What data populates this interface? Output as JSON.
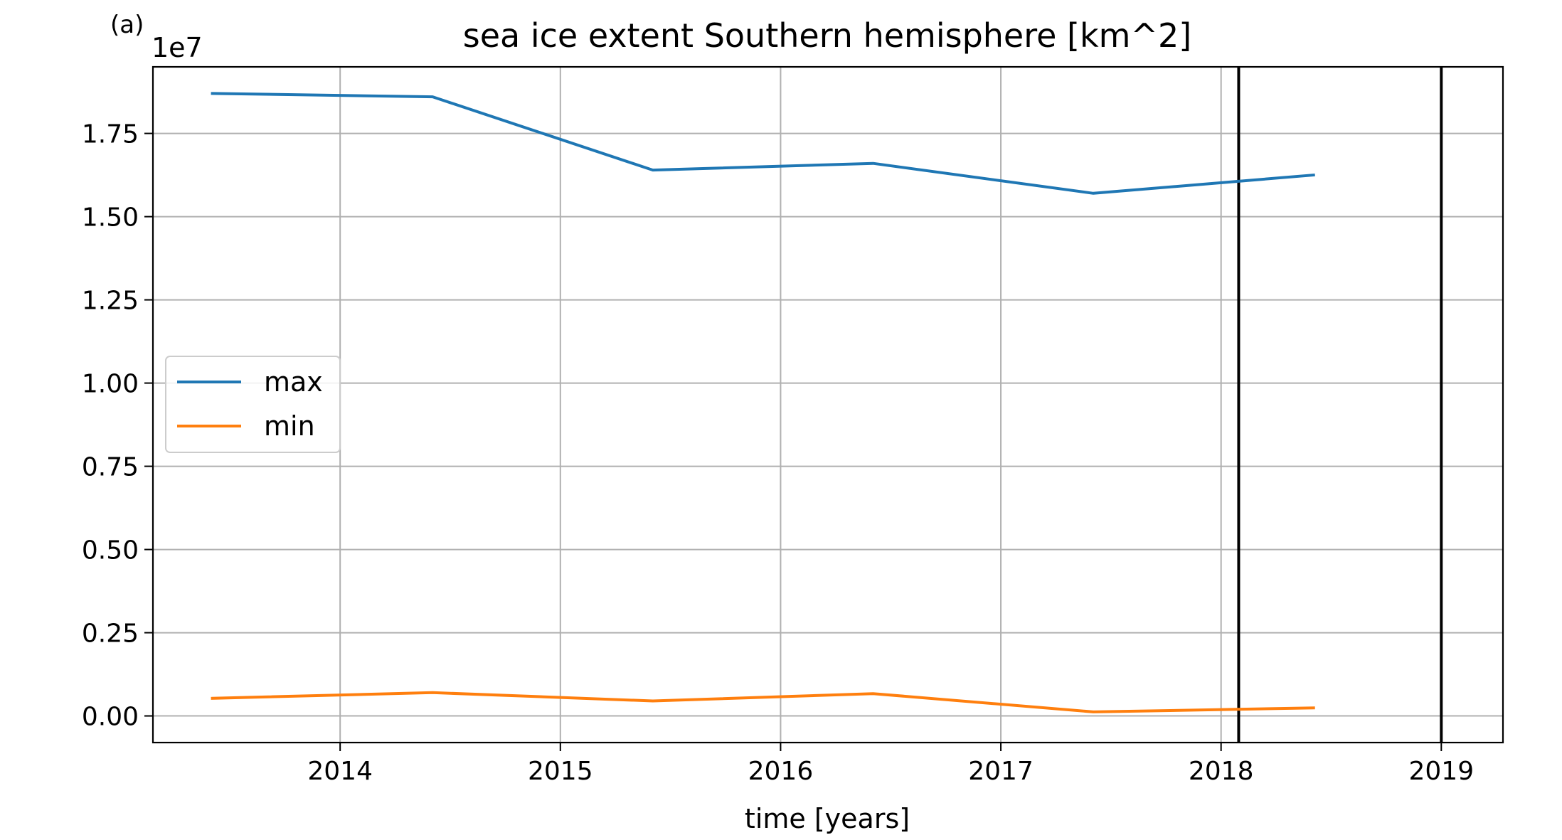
{
  "chart_data": {
    "type": "line",
    "panel_label": "(a)",
    "title": "sea ice extent Southern hemisphere [km^2]",
    "xlabel": "time [years]",
    "ylabel": "",
    "y_offset_label": "1e7",
    "xlim": [
      2013.15,
      2019.28
    ],
    "ylim": [
      -0.08,
      1.95
    ],
    "x_ticks": [
      2014,
      2015,
      2016,
      2017,
      2018,
      2019
    ],
    "x_tick_labels": [
      "2014",
      "2015",
      "2016",
      "2017",
      "2018",
      "2019"
    ],
    "y_ticks": [
      0.0,
      0.25,
      0.5,
      0.75,
      1.0,
      1.25,
      1.5,
      1.75
    ],
    "y_tick_labels": [
      "0.00",
      "0.25",
      "0.50",
      "0.75",
      "1.00",
      "1.25",
      "1.50",
      "1.75"
    ],
    "grid": true,
    "legend_position": "center-left",
    "vertical_lines": [
      2018.08,
      2019.0
    ],
    "series": [
      {
        "name": "max",
        "color": "#1f77b4",
        "x": [
          2013.42,
          2014.42,
          2015.42,
          2016.42,
          2017.42,
          2018.42
        ],
        "y": [
          1.87,
          1.86,
          1.64,
          1.66,
          1.57,
          1.625
        ]
      },
      {
        "name": "min",
        "color": "#ff7f0e",
        "x": [
          2013.42,
          2014.42,
          2015.42,
          2016.42,
          2017.42,
          2018.42
        ],
        "y": [
          0.053,
          0.07,
          0.045,
          0.067,
          0.012,
          0.024
        ]
      }
    ]
  }
}
